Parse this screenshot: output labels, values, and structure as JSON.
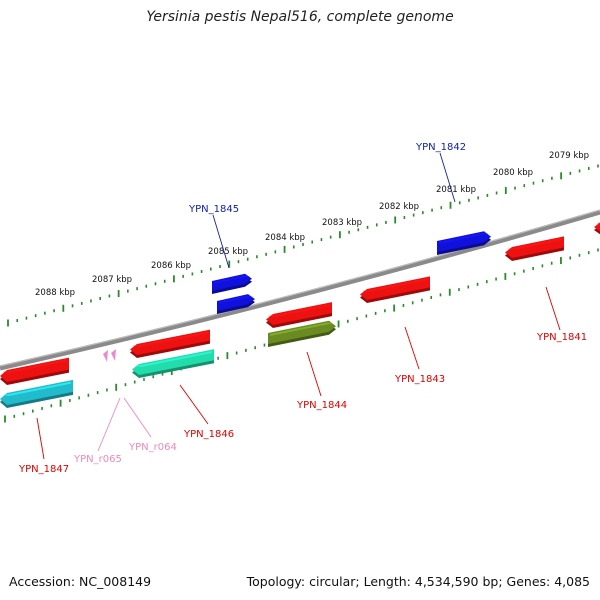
{
  "title": "Yersinia pestis Nepal516, complete genome",
  "footer": {
    "accession": "Accession: NC_008149",
    "topology": "Topology: circular; Length: 4,534,590 bp; Genes: 4,085"
  },
  "colors": {
    "backbone": "#888888",
    "ruler": "#2a8a2a",
    "cds_red": "#ee1111",
    "cds_blue": "#1111dd",
    "cds_cyan": "#22bbcc",
    "cds_teal": "#22ddaa",
    "cds_olive": "#6a8a22",
    "rna_pink": "#ee88cc",
    "label_red": "#dd0000",
    "label_blue": "#1122aa",
    "label_pink": "#ee88bb"
  },
  "scale_labels": [
    {
      "text": "2088 kbp"
    },
    {
      "text": "2087 kbp"
    },
    {
      "text": "2086 kbp"
    },
    {
      "text": "2085 kbp"
    },
    {
      "text": "2084 kbp"
    },
    {
      "text": "2083 kbp"
    },
    {
      "text": "2082 kbp"
    },
    {
      "text": "2081 kbp"
    },
    {
      "text": "2080 kbp"
    },
    {
      "text": "2079 kbp"
    }
  ],
  "genes": [
    {
      "name": "YPN_1847",
      "color": "cds_red",
      "label_color": "label_red"
    },
    {
      "name": "YPN_1847",
      "color": "cds_cyan",
      "label_color": "label_red"
    },
    {
      "name": "YPN_r065",
      "color": "rna_pink",
      "label_color": "label_pink"
    },
    {
      "name": "YPN_r064",
      "color": "rna_pink",
      "label_color": "label_pink"
    },
    {
      "name": "YPN_1846",
      "color": "cds_red",
      "label_color": "label_red"
    },
    {
      "name": "YPN_1846",
      "color": "cds_teal",
      "label_color": "label_red"
    },
    {
      "name": "YPN_1845",
      "color": "cds_blue",
      "label_color": "label_blue"
    },
    {
      "name": "YPN_1844",
      "color": "cds_red",
      "label_color": "label_red"
    },
    {
      "name": "YPN_1844",
      "color": "cds_olive",
      "label_color": "label_red"
    },
    {
      "name": "YPN_1843",
      "color": "cds_red",
      "label_color": "label_red"
    },
    {
      "name": "YPN_1842",
      "color": "cds_blue",
      "label_color": "label_blue"
    },
    {
      "name": "YPN_1841",
      "color": "cds_red",
      "label_color": "label_red"
    }
  ],
  "gene_labels": {
    "ypn_1847": "YPN_1847",
    "ypn_r065": "YPN_r065",
    "ypn_r064": "YPN_r064",
    "ypn_1846": "YPN_1846",
    "ypn_1845": "YPN_1845",
    "ypn_1844": "YPN_1844",
    "ypn_1843": "YPN_1843",
    "ypn_1842": "YPN_1842",
    "ypn_1841": "YPN_1841"
  }
}
